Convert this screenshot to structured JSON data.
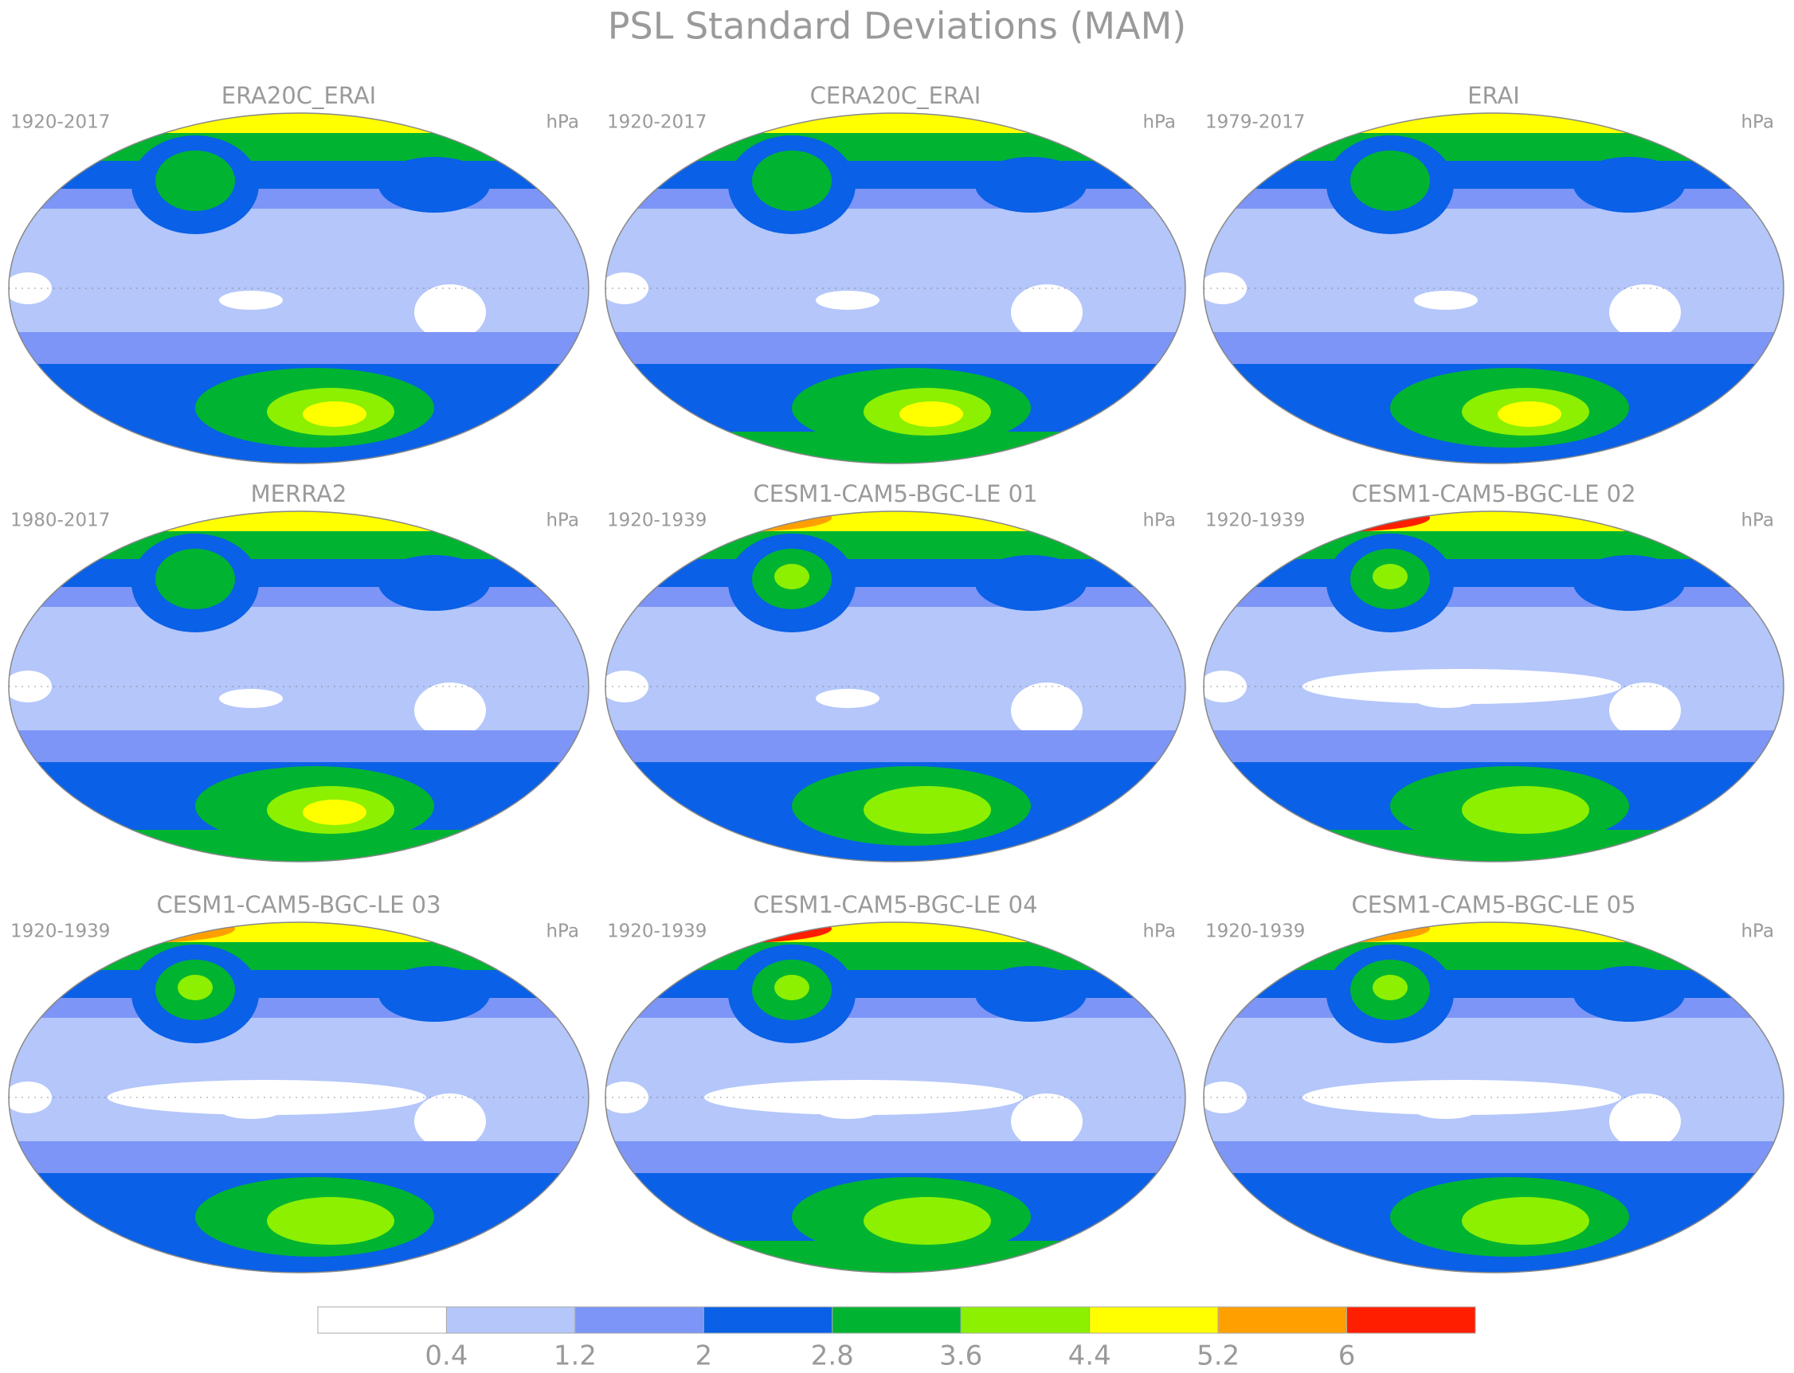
{
  "title": "PSL Standard Deviations (MAM)",
  "panels": [
    {
      "title": "ERA20C_ERAI",
      "period": "1920-2017",
      "units": "hPa"
    },
    {
      "title": "CERA20C_ERAI",
      "period": "1920-2017",
      "units": "hPa"
    },
    {
      "title": "ERAI",
      "period": "1979-2017",
      "units": "hPa"
    },
    {
      "title": "MERRA2",
      "period": "1980-2017",
      "units": "hPa"
    },
    {
      "title": "CESM1-CAM5-BGC-LE 01",
      "period": "1920-1939",
      "units": "hPa"
    },
    {
      "title": "CESM1-CAM5-BGC-LE 02",
      "period": "1920-1939",
      "units": "hPa"
    },
    {
      "title": "CESM1-CAM5-BGC-LE 03",
      "period": "1920-1939",
      "units": "hPa"
    },
    {
      "title": "CESM1-CAM5-BGC-LE 04",
      "period": "1920-1939",
      "units": "hPa"
    },
    {
      "title": "CESM1-CAM5-BGC-LE 05",
      "period": "1920-1939",
      "units": "hPa"
    }
  ],
  "colorbar": {
    "levels": [
      0.4,
      1.2,
      2,
      2.8,
      3.6,
      4.4,
      5.2,
      6
    ],
    "colors": [
      "#ffffff",
      "#b4c6fa",
      "#7c95f6",
      "#0a60e6",
      "#00b432",
      "#8cf000",
      "#ffff00",
      "#ffa000",
      "#ff1e00"
    ]
  }
}
